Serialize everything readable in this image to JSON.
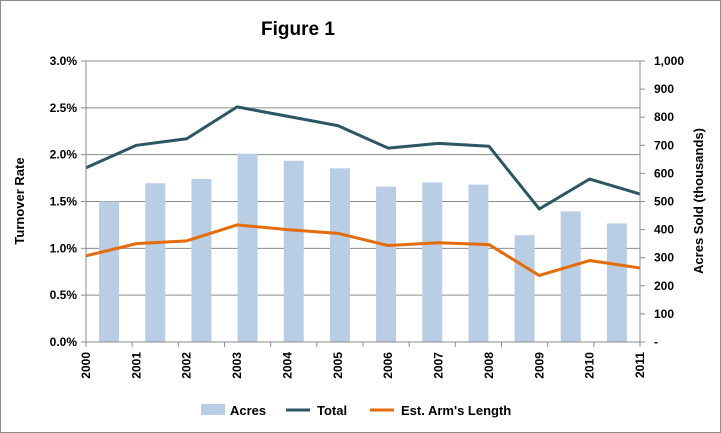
{
  "chart_data": {
    "type": "bar+line",
    "title": "Figure 1",
    "categories": [
      "2000",
      "2001",
      "2002",
      "2003",
      "2004",
      "2005",
      "2006",
      "2007",
      "2008",
      "2009",
      "2010",
      "2011"
    ],
    "bars": {
      "name": "Acres",
      "axis": "right",
      "values": [
        500,
        565,
        580,
        670,
        645,
        618,
        553,
        568,
        560,
        380,
        465,
        422
      ],
      "color": "#b9cde5"
    },
    "series": [
      {
        "name": "Total",
        "axis": "left",
        "values": [
          0.0186,
          0.021,
          0.0217,
          0.0251,
          0.0241,
          0.0231,
          0.0207,
          0.0212,
          0.0209,
          0.0142,
          0.0174,
          0.0158
        ],
        "color": "#2a5762"
      },
      {
        "name": "Est. Arm's Length",
        "axis": "left",
        "values": [
          0.0092,
          0.0105,
          0.0108,
          0.0125,
          0.012,
          0.0116,
          0.0103,
          0.0106,
          0.0104,
          0.0071,
          0.0087,
          0.0079
        ],
        "color": "#e46c0a"
      }
    ],
    "y_left": {
      "label": "Turnover Rate",
      "range": [
        0,
        0.03
      ],
      "ticks": [
        "0.0%",
        "0.5%",
        "1.0%",
        "1.5%",
        "2.0%",
        "2.5%",
        "3.0%"
      ]
    },
    "y_right": {
      "label": "Acres Sold (thousands)",
      "range": [
        0,
        1000
      ],
      "ticks": [
        "-",
        "100",
        "200",
        "300",
        "400",
        "500",
        "600",
        "700",
        "800",
        "900",
        "1,000"
      ]
    },
    "grid": true,
    "legend": "bottom",
    "legend_entries": [
      "Acres",
      "Total",
      "Est. Arm's Length"
    ]
  }
}
